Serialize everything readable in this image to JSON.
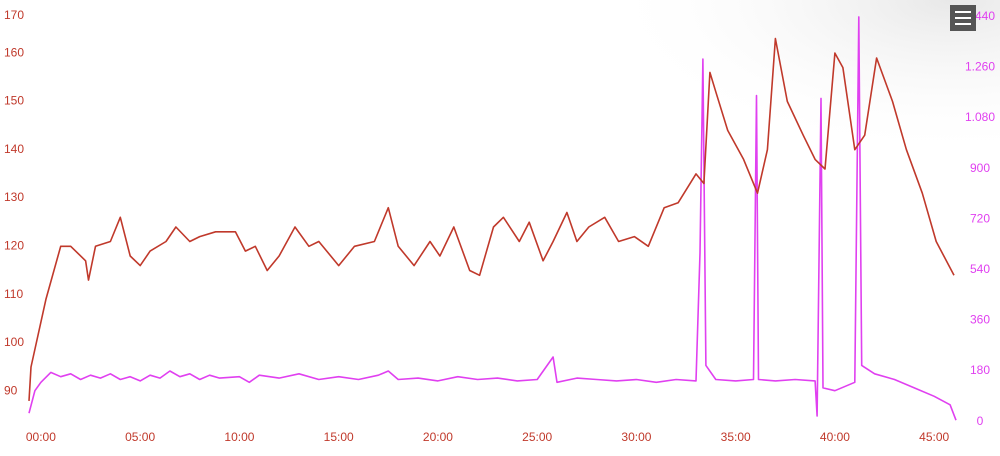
{
  "chart_data": {
    "type": "line",
    "xlim": [
      -0.7,
      46.3
    ],
    "xticks": [
      {
        "value": 0,
        "label": "00:00"
      },
      {
        "value": 5,
        "label": "05:00"
      },
      {
        "value": 10,
        "label": "10:00"
      },
      {
        "value": 15,
        "label": "15:00"
      },
      {
        "value": 20,
        "label": "20:00"
      },
      {
        "value": 25,
        "label": "25:00"
      },
      {
        "value": 30,
        "label": "30:00"
      },
      {
        "value": 35,
        "label": "35:00"
      },
      {
        "value": 40,
        "label": "40:00"
      },
      {
        "value": 45,
        "label": "45:00"
      }
    ],
    "ylim": [
      83,
      171
    ],
    "yticks": [
      90,
      100,
      110,
      120,
      130,
      140,
      150,
      160,
      170
    ],
    "y2lim": [
      -12,
      1500
    ],
    "y2ticks": [
      0,
      180,
      360,
      540,
      720,
      900,
      {
        "value": 1080,
        "label": "1.080"
      },
      {
        "value": 1260,
        "label": "1.260"
      },
      {
        "value": 1440,
        "label": "1.440"
      }
    ],
    "series": [
      {
        "color": "#c0392b",
        "axis": "y",
        "x": [
          -0.6,
          -0.5,
          0.25,
          1.0,
          1.5,
          2.25,
          2.4,
          2.75,
          3.5,
          4.0,
          4.5,
          5.0,
          5.5,
          6.3,
          6.8,
          7.5,
          8.0,
          8.8,
          9.8,
          10.3,
          10.8,
          11.4,
          12.0,
          12.8,
          13.5,
          14.0,
          15.0,
          15.8,
          16.8,
          17.5,
          18.0,
          18.8,
          19.6,
          20.1,
          20.8,
          21.6,
          22.1,
          22.8,
          23.3,
          24.1,
          24.6,
          25.3,
          25.8,
          26.5,
          27.0,
          27.6,
          28.4,
          29.1,
          29.9,
          30.6,
          31.4,
          32.1,
          33.0,
          33.4,
          33.7,
          34.0,
          34.6,
          35.4,
          36.1,
          36.6,
          37.0,
          37.6,
          38.4,
          39.0,
          39.5,
          40.0,
          40.4,
          41.0,
          41.5,
          42.1,
          42.9,
          43.6,
          44.4,
          45.1,
          46.0
        ],
        "values": [
          88,
          95,
          109,
          120,
          120,
          117,
          113,
          120,
          121,
          126,
          118,
          116,
          119,
          121,
          124,
          121,
          122,
          123,
          123,
          119,
          120,
          115,
          118,
          124,
          120,
          121,
          116,
          120,
          121,
          128,
          120,
          116,
          121,
          118,
          124,
          115,
          114,
          124,
          126,
          121,
          125,
          117,
          121,
          127,
          121,
          124,
          126,
          121,
          122,
          120,
          128,
          129,
          135,
          133,
          156,
          152,
          144,
          138,
          131,
          140,
          163,
          150,
          143,
          138,
          136,
          160,
          157,
          140,
          143,
          159,
          150,
          140,
          131,
          121,
          114
        ]
      },
      {
        "color": "#e040f0",
        "axis": "y2",
        "x": [
          -0.6,
          -0.3,
          0,
          0.5,
          1,
          1.5,
          2,
          2.5,
          3,
          3.5,
          4,
          4.5,
          5,
          5.5,
          6,
          6.5,
          7,
          7.5,
          8,
          8.5,
          9,
          10,
          10.5,
          11,
          12,
          13,
          14,
          15,
          16,
          17,
          17.5,
          18,
          19,
          20,
          21,
          22,
          23,
          24,
          25,
          25.8,
          26,
          27,
          28,
          29,
          30,
          31,
          32,
          33,
          33.2,
          33.35,
          33.5,
          34,
          35,
          35.9,
          36.05,
          36.15,
          37,
          38,
          39,
          39.1,
          39.3,
          39.4,
          40,
          41,
          41.2,
          41.35,
          42,
          43,
          44,
          45,
          45.8,
          46.1
        ],
        "values": [
          30,
          110,
          140,
          175,
          160,
          170,
          150,
          165,
          155,
          170,
          150,
          160,
          145,
          165,
          155,
          180,
          160,
          170,
          150,
          165,
          155,
          160,
          140,
          165,
          155,
          170,
          150,
          160,
          150,
          165,
          180,
          150,
          155,
          145,
          160,
          150,
          155,
          145,
          150,
          230,
          140,
          155,
          150,
          145,
          150,
          140,
          150,
          145,
          600,
          1290,
          200,
          150,
          145,
          150,
          1160,
          150,
          145,
          150,
          145,
          20,
          1150,
          120,
          110,
          140,
          1440,
          200,
          170,
          150,
          120,
          90,
          60,
          5
        ]
      }
    ]
  }
}
